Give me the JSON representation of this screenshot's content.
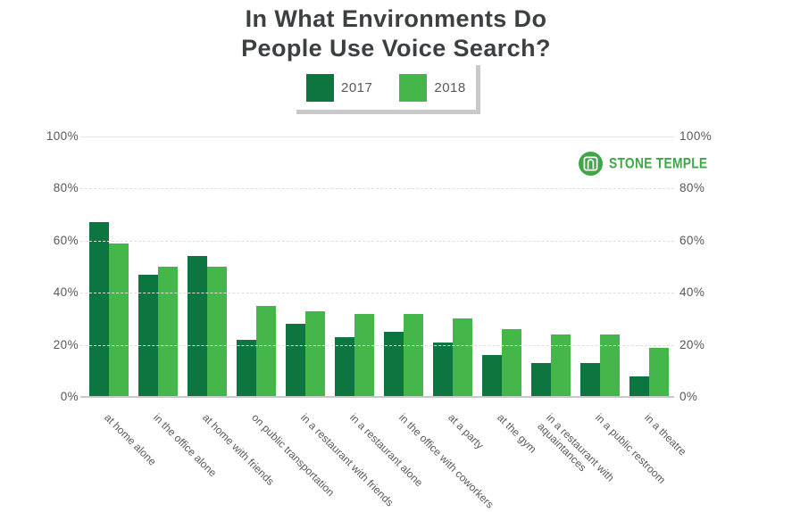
{
  "header": {
    "title_lines": [
      "In What Environments Do",
      "People Use Voice Search?"
    ]
  },
  "logo": {
    "text": "STONE TEMPLE",
    "color": "#3fa747"
  },
  "colors": {
    "series_2017": "#0d753f",
    "series_2018": "#45b649",
    "axis_text": "#57585a",
    "grid_line": "#dedede",
    "baseline": "#c9c9c9",
    "legend_shadow": "#c9c9c9",
    "title_text": "#3e3f41"
  },
  "chart_data": {
    "type": "bar",
    "title": "In What Environments Do People Use Voice Search?",
    "xlabel": "",
    "ylabel": "",
    "ylim": [
      0,
      100
    ],
    "grid": true,
    "legend_position": "top",
    "yticks": [
      {
        "label": "0%",
        "value": 0
      },
      {
        "label": "20%",
        "value": 20
      },
      {
        "label": "40%",
        "value": 40
      },
      {
        "label": "60%",
        "value": 60
      },
      {
        "label": "80%",
        "value": 80
      },
      {
        "label": "100%",
        "value": 100
      }
    ],
    "categories": [
      "at home alone",
      "in the office alone",
      "at home with friends",
      "on public transportation",
      "in a restaurant with friends",
      "in a restaurant alone",
      "in the office with coworkers",
      "at a party",
      "at the gym",
      "in a restaurant with aquaintances",
      "in a public restroom",
      "in a theatre"
    ],
    "category_lines": [
      [
        "at home alone"
      ],
      [
        "in the office alone"
      ],
      [
        "at home with friends"
      ],
      [
        "on public transportation"
      ],
      [
        "in a restaurant with friends"
      ],
      [
        "in a restaurant alone"
      ],
      [
        "in the office with coworkers"
      ],
      [
        "at a party"
      ],
      [
        "at the gym"
      ],
      [
        "in a restaurant with",
        "aquaintances"
      ],
      [
        "in a public restroom"
      ],
      [
        "in a theatre"
      ]
    ],
    "series": [
      {
        "name": "2017",
        "color": "#0d753f",
        "values": [
          67,
          47,
          54,
          22,
          28,
          23,
          25,
          21,
          16,
          13,
          13,
          8
        ]
      },
      {
        "name": "2018",
        "color": "#45b649",
        "values": [
          59,
          50,
          50,
          35,
          33,
          32,
          32,
          30,
          26,
          24,
          24,
          19
        ]
      }
    ]
  }
}
